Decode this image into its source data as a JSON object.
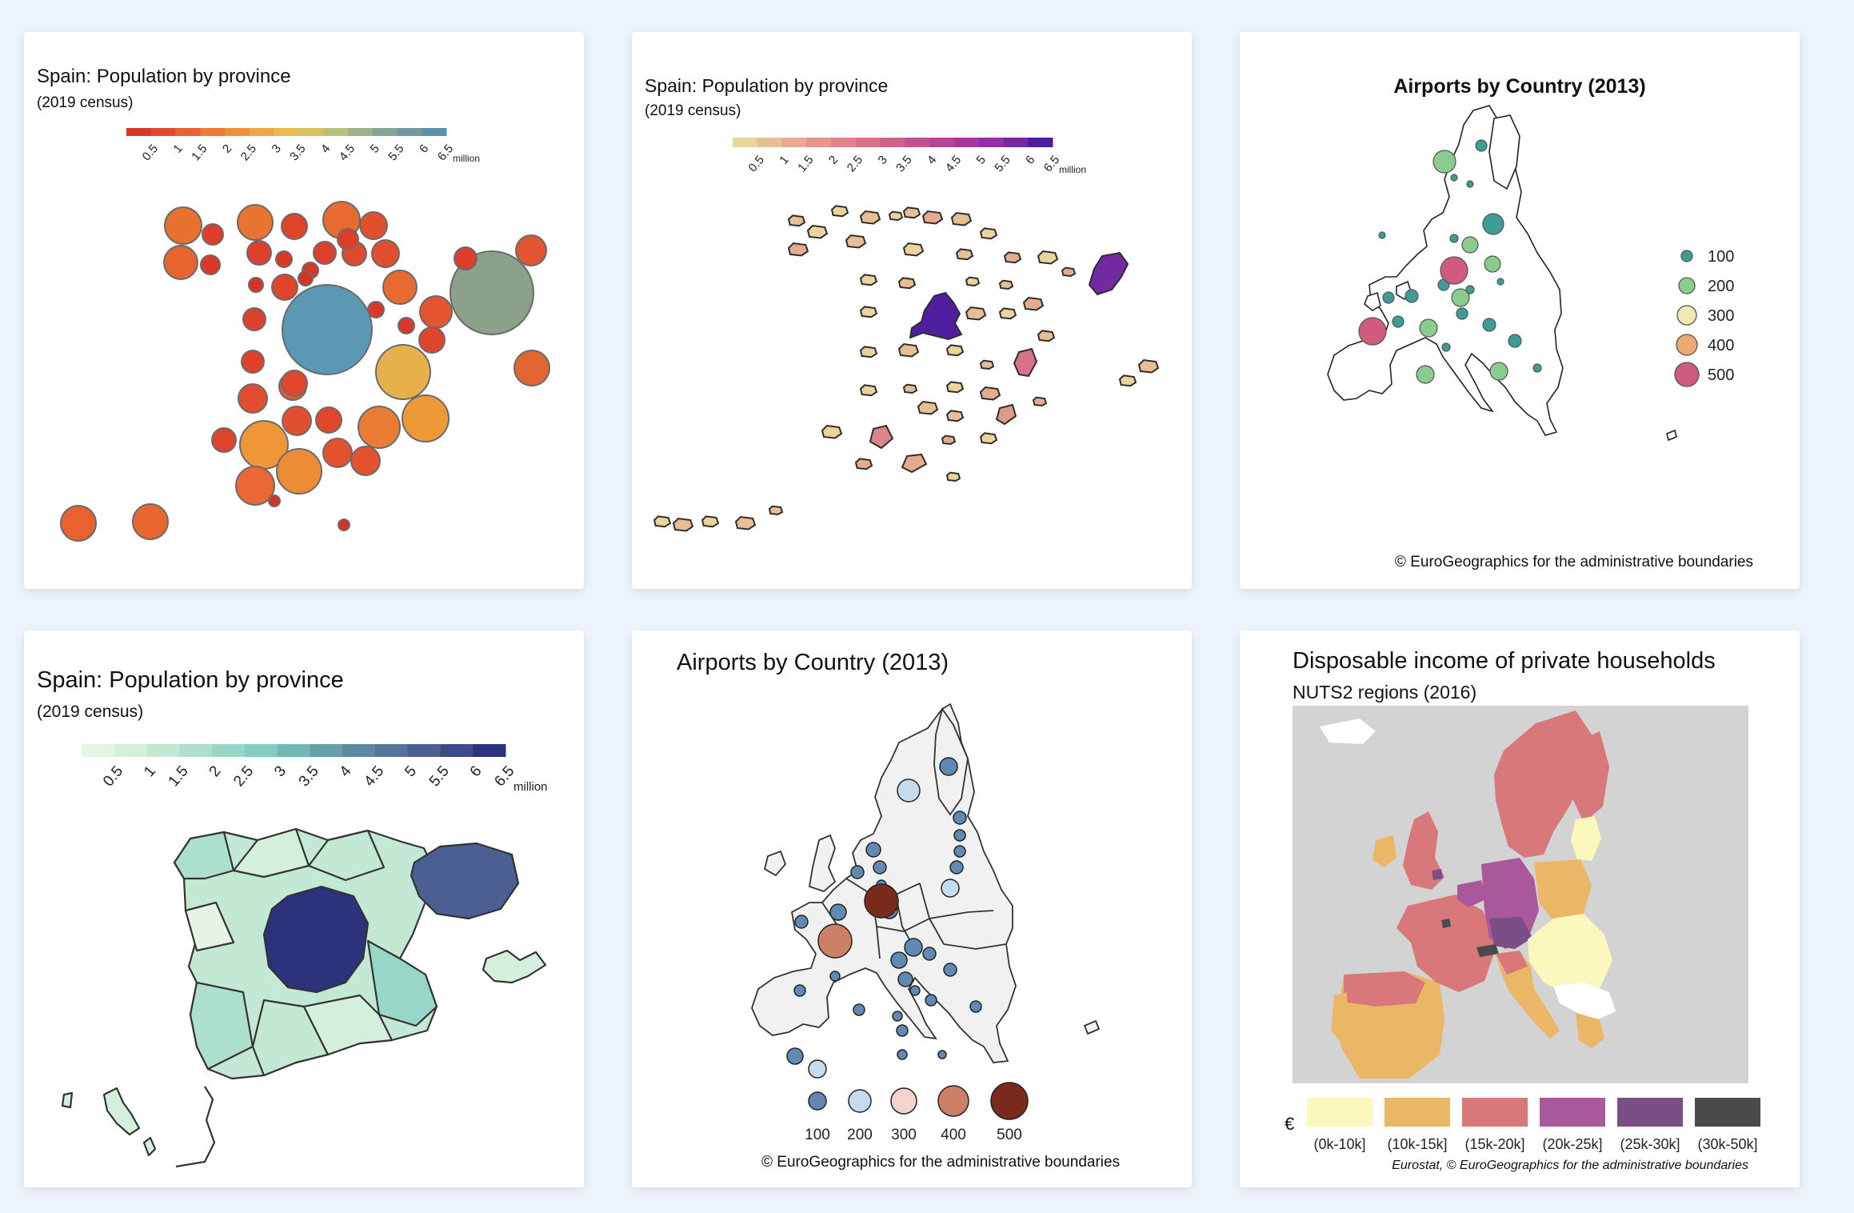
{
  "cards": [
    {
      "title": "Spain: Population by province",
      "subtitle": "(2019 census)",
      "legend_ticks": [
        "0.5",
        "1",
        "1.5",
        "2",
        "2.5",
        "3",
        "3.5",
        "4",
        "4.5",
        "5",
        "5.5",
        "6",
        "6.5"
      ],
      "legend_unit": "million",
      "palette": [
        "#d9362b",
        "#e14a2e",
        "#e86132",
        "#ed7a36",
        "#ef913c",
        "#eda843",
        "#e7bc4d",
        "#d6c35f",
        "#b9c07a",
        "#9db28a",
        "#86a496",
        "#71979f",
        "#5d90ab"
      ]
    },
    {
      "title": "Spain: Population by province",
      "subtitle": "(2019 census)",
      "legend_ticks": [
        "0.5",
        "1",
        "1.5",
        "2",
        "2.5",
        "3",
        "3.5",
        "4",
        "4.5",
        "5",
        "5.5",
        "6",
        "6.5"
      ],
      "legend_unit": "million",
      "palette": [
        "#ebd49c",
        "#e8bf94",
        "#e5ab8e",
        "#e2978b",
        "#de848a",
        "#d77289",
        "#cd618c",
        "#c25190",
        "#b44497",
        "#a43b9b",
        "#8f329f",
        "#7329a2",
        "#4f1e9f"
      ]
    },
    {
      "title": "Airports by Country (2013)",
      "legend": [
        {
          "label": "100",
          "color": "#3e9b95"
        },
        {
          "label": "200",
          "color": "#8acb8e"
        },
        {
          "label": "300",
          "color": "#f0e9b3"
        },
        {
          "label": "400",
          "color": "#e9aa76"
        },
        {
          "label": "500",
          "color": "#cf5b7d"
        }
      ],
      "credit": "© EuroGeographics for the administrative boundaries"
    },
    {
      "title": "Spain: Population by province",
      "subtitle": "(2019 census)",
      "legend_ticks": [
        "0.5",
        "1",
        "1.5",
        "2",
        "2.5",
        "3",
        "3.5",
        "4",
        "4.5",
        "5",
        "5.5",
        "6",
        "6.5"
      ],
      "legend_unit": "million",
      "palette": [
        "#e5f4e7",
        "#d5efdd",
        "#c3e8d4",
        "#addfcd",
        "#98d6c7",
        "#84cbc0",
        "#73b8b5",
        "#67a1a8",
        "#5e8aa0",
        "#56749a",
        "#4b5f93",
        "#3e4a89",
        "#2c327b"
      ]
    },
    {
      "title": "Airports by Country (2013)",
      "legend": [
        {
          "label": "100",
          "color": "#6189b1"
        },
        {
          "label": "200",
          "color": "#c5dbee"
        },
        {
          "label": "300",
          "color": "#f2d4cc"
        },
        {
          "label": "400",
          "color": "#cc8068"
        },
        {
          "label": "500",
          "color": "#7a2b1e"
        }
      ],
      "credit": "© EuroGeographics for the administrative boundaries"
    },
    {
      "title": "Disposable income of private households",
      "subtitle": "NUTS2 regions (2016)",
      "currency": "€",
      "legend": [
        {
          "label": "(0k-10k]",
          "color": "#fbf8bd"
        },
        {
          "label": "(10k-15k]",
          "color": "#e9b766"
        },
        {
          "label": "(15k-20k]",
          "color": "#d9787b"
        },
        {
          "label": "(20k-25k]",
          "color": "#a9589b"
        },
        {
          "label": "(25k-30k]",
          "color": "#7a4f86"
        },
        {
          "label": "(30k-50k]",
          "color": "#4a4a4a"
        }
      ],
      "credit": "Eurostat, © EuroGeographics for the administrative boundaries"
    }
  ]
}
